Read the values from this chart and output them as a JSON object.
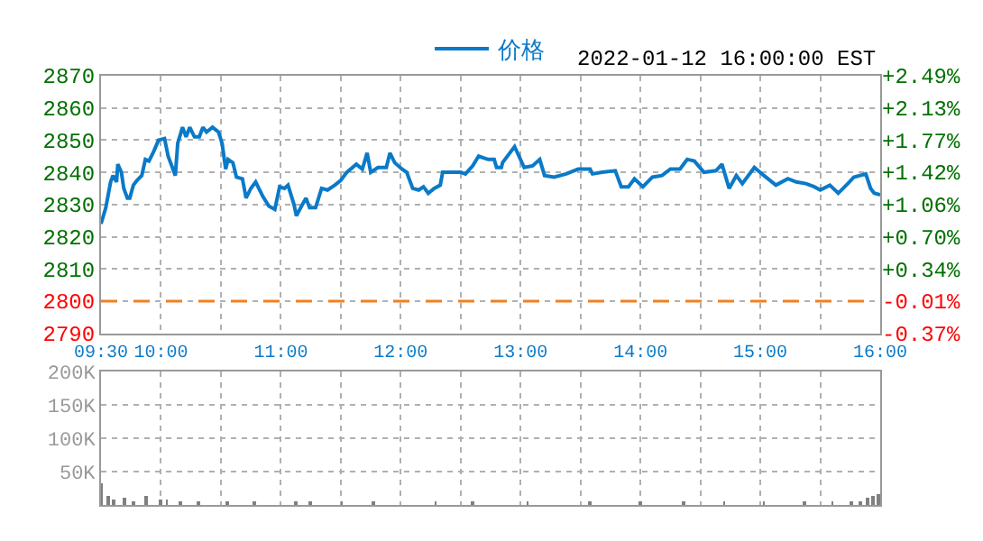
{
  "chart_data": [
    {
      "type": "line",
      "annotations": [
        "2022-01-12 16:00:00 EST"
      ],
      "legend": "top",
      "x": [
        9.5,
        9.54,
        9.58,
        9.6,
        9.63,
        9.64,
        9.67,
        9.69,
        9.72,
        9.74,
        9.77,
        9.8,
        9.84,
        9.87,
        9.9,
        9.94,
        9.98,
        10.03,
        10.06,
        10.1,
        10.12,
        10.14,
        10.18,
        10.21,
        10.24,
        10.28,
        10.32,
        10.35,
        10.38,
        10.43,
        10.48,
        10.51,
        10.54,
        10.56,
        10.6,
        10.63,
        10.68,
        10.71,
        10.75,
        10.79,
        10.85,
        10.9,
        10.95,
        10.99,
        11.03,
        11.06,
        11.11,
        11.13,
        11.18,
        11.21,
        11.24,
        11.29,
        11.34,
        11.39,
        11.45,
        11.5,
        11.55,
        11.63,
        11.68,
        11.72,
        11.75,
        11.81,
        11.88,
        11.91,
        11.95,
        12.01,
        12.05,
        12.1,
        12.15,
        12.19,
        12.23,
        12.28,
        12.33,
        12.35,
        12.45,
        12.5,
        12.54,
        12.6,
        12.65,
        12.73,
        12.78,
        12.8,
        12.84,
        12.85,
        12.95,
        13.03,
        13.1,
        13.16,
        13.2,
        13.28,
        13.38,
        13.48,
        13.58,
        13.6,
        13.68,
        13.79,
        13.84,
        13.9,
        13.95,
        14.02,
        14.1,
        14.18,
        14.25,
        14.33,
        14.39,
        14.45,
        14.53,
        14.63,
        14.68,
        14.74,
        14.8,
        14.85,
        14.95,
        15.03,
        15.13,
        15.23,
        15.3,
        15.38,
        15.45,
        15.5,
        15.58,
        15.65,
        15.73,
        15.78,
        15.88,
        15.92,
        15.95,
        16.0
      ],
      "series": [
        {
          "name": "价格",
          "color": "#0a7ac8",
          "values": [
            2824,
            2829,
            2837,
            2839,
            2837,
            2842.5,
            2840,
            2835,
            2832,
            2832,
            2836,
            2837.5,
            2839,
            2844,
            2843.5,
            2846.5,
            2850,
            2850.5,
            2845,
            2841,
            2839,
            2849,
            2854,
            2851,
            2854,
            2851,
            2851,
            2854,
            2852.5,
            2854,
            2852.5,
            2849,
            2841,
            2844,
            2843,
            2838.5,
            2838,
            2832,
            2835,
            2837,
            2832.5,
            2829.5,
            2828.5,
            2835.5,
            2835,
            2836,
            2830,
            2826.5,
            2830,
            2832,
            2829,
            2829,
            2835,
            2834.5,
            2836,
            2837.5,
            2840,
            2842.5,
            2841,
            2846,
            2840,
            2841.5,
            2841.5,
            2846,
            2843,
            2841,
            2840,
            2835,
            2834.5,
            2835.5,
            2833.5,
            2835,
            2836,
            2840,
            2840,
            2840,
            2839.5,
            2842,
            2845,
            2844,
            2844,
            2841.5,
            2841.5,
            2843,
            2848,
            2841.5,
            2842,
            2844,
            2839,
            2838.5,
            2839.5,
            2841,
            2841,
            2839.5,
            2840,
            2840.5,
            2835.5,
            2835.5,
            2838,
            2835.5,
            2838.5,
            2839,
            2841,
            2841,
            2844,
            2843.5,
            2840,
            2840.5,
            2842.5,
            2835,
            2839,
            2836.5,
            2841.5,
            2839,
            2836,
            2838,
            2837,
            2836.5,
            2835.5,
            2834.5,
            2836,
            2833.5,
            2836.5,
            2838.5,
            2839.5,
            2835,
            2833.5,
            2833
          ]
        }
      ],
      "xlim": [
        9.5,
        16
      ],
      "xticks": [
        {
          "value": 9.5,
          "label": "09:30"
        },
        {
          "value": 10,
          "label": "10:00"
        },
        {
          "value": 10.5,
          "label": null
        },
        {
          "value": 11,
          "label": "11:00"
        },
        {
          "value": 11.5,
          "label": null
        },
        {
          "value": 12,
          "label": "12:00"
        },
        {
          "value": 12.5,
          "label": null
        },
        {
          "value": 13,
          "label": "13:00"
        },
        {
          "value": 13.5,
          "label": null
        },
        {
          "value": 14,
          "label": "14:00"
        },
        {
          "value": 14.5,
          "label": null
        },
        {
          "value": 15,
          "label": "15:00"
        },
        {
          "value": 15.5,
          "label": null
        },
        {
          "value": 16,
          "label": "16:00"
        }
      ],
      "ylim": [
        2790,
        2870
      ],
      "yticks": [
        2790,
        2800,
        2810,
        2820,
        2830,
        2840,
        2850,
        2860,
        2870
      ],
      "y2lim": [
        -0.37,
        2.49
      ],
      "y2ticks": [
        {
          "value": -0.37,
          "label": "-0.37%"
        },
        {
          "value": -0.01,
          "label": "-0.01%"
        },
        {
          "value": 0.34,
          "label": "+0.34%"
        },
        {
          "value": 0.7,
          "label": "+0.70%"
        },
        {
          "value": 1.06,
          "label": "+1.06%"
        },
        {
          "value": 1.42,
          "label": "+1.42%"
        },
        {
          "value": 1.77,
          "label": "+1.77%"
        },
        {
          "value": 2.13,
          "label": "+2.13%"
        },
        {
          "value": 2.49,
          "label": "+2.49%"
        }
      ],
      "ref_lines": [
        {
          "axis": "y",
          "value": 2800,
          "color": "#f08020",
          "line_style": "dashed"
        }
      ],
      "grid": true,
      "line_style": "solid",
      "marker": "none"
    },
    {
      "type": "bar",
      "color": "#808080",
      "tick_labels": "y",
      "grid": true,
      "x": [
        9.5,
        9.56,
        9.61,
        9.69,
        9.77,
        9.88,
        10.0,
        10.05,
        10.16,
        10.31,
        10.55,
        10.78,
        11.12,
        11.25,
        11.51,
        11.77,
        12.29,
        12.6,
        13.06,
        13.58,
        14.0,
        14.36,
        14.7,
        15.03,
        15.37,
        15.6,
        15.76,
        15.84,
        15.89,
        15.94,
        15.98
      ],
      "values": [
        31000,
        12000,
        8000,
        10000,
        5000,
        12000,
        8000,
        8000,
        6000,
        5000,
        6000,
        4000,
        5000,
        4000,
        3000,
        3000,
        3000,
        4000,
        3000,
        3000,
        3000,
        3000,
        4000,
        3000,
        6000,
        3000,
        5000,
        6000,
        9000,
        13000,
        17000
      ],
      "xlim": [
        9.5,
        16
      ],
      "xticks": [
        9.5,
        10,
        10.5,
        11,
        11.5,
        12,
        12.5,
        13,
        13.5,
        14,
        14.5,
        15,
        15.5,
        16
      ],
      "ylim": [
        0,
        200000
      ],
      "yticks": [
        {
          "value": 0,
          "label": null
        },
        {
          "value": 50000,
          "label": "50K"
        },
        {
          "value": 100000,
          "label": "100K"
        },
        {
          "value": 150000,
          "label": "150K"
        },
        {
          "value": 200000,
          "label": "200K"
        }
      ]
    }
  ]
}
